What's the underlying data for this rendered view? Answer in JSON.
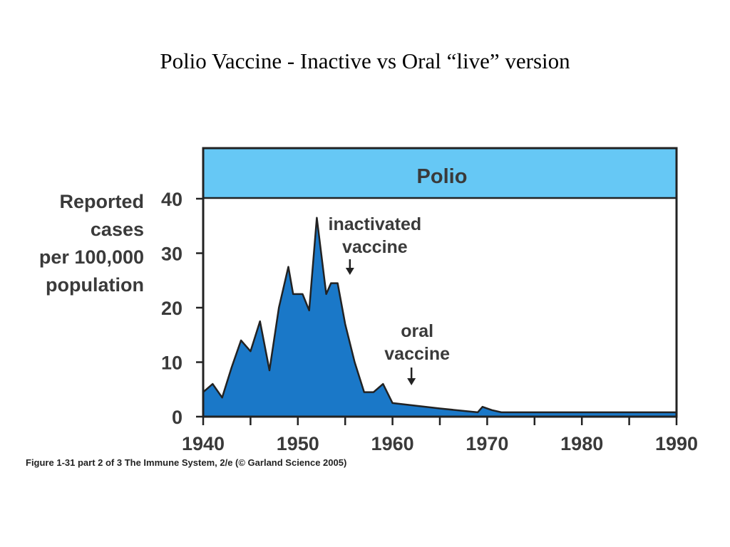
{
  "slide": {
    "title": "Polio Vaccine - Inactive vs Oral “live” version",
    "caption": "Figure 1-31 part 2 of 3  The Immune System, 2/e (© Garland Science 2005)"
  },
  "colors": {
    "header": "#66c8f5",
    "fill": "#1a78c8",
    "axis": "#222222",
    "text": "#3a3a3a"
  },
  "chart_data": {
    "type": "area",
    "title": "Polio",
    "ylabel_lines": [
      "Reported",
      "cases",
      "per 100,000",
      "population"
    ],
    "xlim": [
      1940,
      1990
    ],
    "ylim": [
      0,
      40
    ],
    "xticks": [
      1940,
      1950,
      1960,
      1970,
      1980,
      1990
    ],
    "yticks": [
      0,
      10,
      20,
      30,
      40
    ],
    "series": [
      {
        "x": [
          1940,
          1941,
          1942,
          1943,
          1944,
          1945,
          1946,
          1947,
          1948,
          1949,
          1949.5,
          1950.5,
          1951.2,
          1952,
          1953,
          1953.5,
          1954.2,
          1955,
          1956,
          1957,
          1958,
          1959,
          1960,
          1965,
          1969,
          1969.5,
          1970.5,
          1971.5,
          1975,
          1980,
          1985,
          1990
        ],
        "y": [
          4.5,
          6,
          3.5,
          9,
          14,
          12,
          17.5,
          8.5,
          20,
          27.5,
          22.5,
          22.5,
          19.5,
          36.5,
          22.5,
          24.5,
          24.5,
          17,
          10,
          4.5,
          4.5,
          6,
          2.5,
          1.5,
          0.8,
          1.8,
          1.2,
          0.8,
          0.8,
          0.8,
          0.8,
          0.8
        ]
      }
    ],
    "annotations": [
      {
        "text_lines": [
          "inactivated",
          "vaccine"
        ],
        "x": 1955.5
      },
      {
        "text_lines": [
          "oral",
          "vaccine"
        ],
        "x": 1962
      }
    ]
  }
}
